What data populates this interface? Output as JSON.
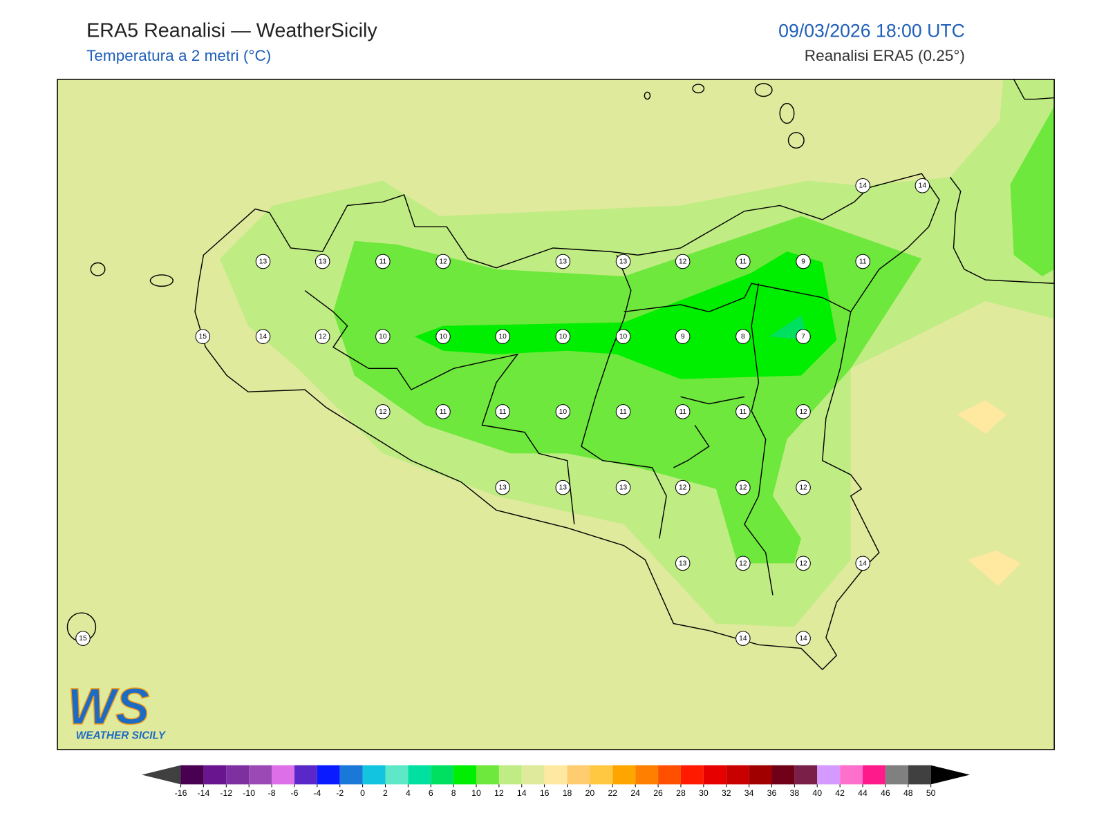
{
  "header": {
    "title": "ERA5 Reanalisi — WeatherSicily",
    "subtitle": "Temperatura a 2 metri (°C)",
    "datetime": "09/03/2026 18:00 UTC",
    "source": "Reanalisi ERA5 (0.25°)"
  },
  "stations": [
    13,
    13,
    11,
    12,
    13,
    13,
    12,
    11,
    9,
    11,
    15,
    14,
    12,
    10,
    10,
    10,
    10,
    10,
    9,
    8,
    7,
    12,
    11,
    11,
    10,
    11,
    11,
    11,
    12,
    13,
    13,
    13,
    12,
    12,
    12,
    13,
    12,
    12,
    14,
    14,
    14,
    15,
    14,
    14
  ],
  "logo": {
    "mark": "WS",
    "text": "WEATHER SICILY"
  },
  "colorbar": {
    "ticks": [
      -16,
      -14,
      -12,
      -10,
      -8,
      -6,
      -4,
      -2,
      0,
      2,
      4,
      6,
      8,
      10,
      12,
      14,
      16,
      18,
      20,
      22,
      24,
      26,
      28,
      30,
      32,
      34,
      36,
      38,
      40,
      42,
      44,
      46,
      48,
      50
    ],
    "colors": [
      "#4a0050",
      "#6a1590",
      "#7e2fa0",
      "#9b4ab5",
      "#dd70e8",
      "#5a27c8",
      "#0a1cff",
      "#1a78d8",
      "#12c4e0",
      "#5ee8c8",
      "#00e0a0",
      "#00e060",
      "#00ee00",
      "#6ee83c",
      "#c0ec84",
      "#e0ea9c",
      "#ffe8a0",
      "#ffcc70",
      "#ffc840",
      "#ffa500",
      "#ff8000",
      "#ff5000",
      "#ff1a00",
      "#e60000",
      "#c80000",
      "#a00000",
      "#700018",
      "#7a2048",
      "#d49aff",
      "#ff70cc",
      "#ff1a8c",
      "#808080",
      "#404040"
    ],
    "under_color": "#404040",
    "over_color": "#000000"
  }
}
